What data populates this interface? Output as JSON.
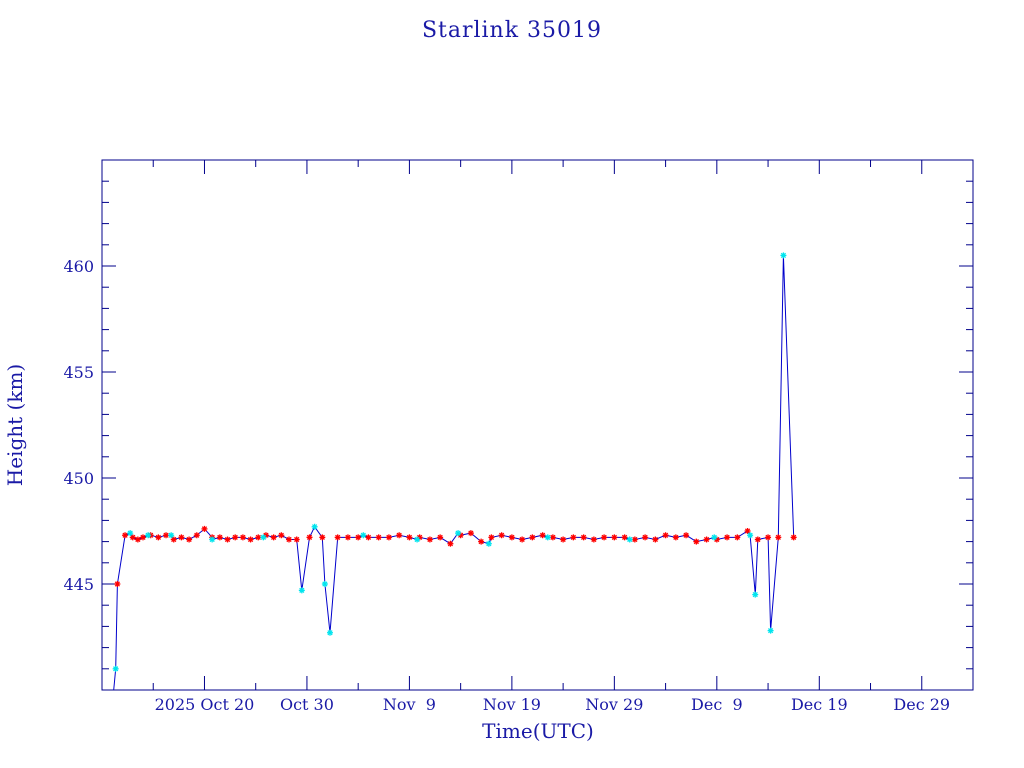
{
  "chart_data": {
    "type": "line",
    "title": "Starlink 35019",
    "xlabel": "Time(UTC)",
    "ylabel": "Height (km)",
    "x_start": "2025 Oct 10",
    "x_end": "2026 Jan 3",
    "xlim": [
      "2025-10-10",
      "2026-01-03"
    ],
    "ylim": [
      440,
      465
    ],
    "y_ticks": [
      445,
      450,
      455,
      460
    ],
    "x_ticks": [
      {
        "date": "2025-10-20",
        "label": "2025 Oct 20"
      },
      {
        "date": "2025-10-30",
        "label": "Oct 30"
      },
      {
        "date": "2025-11-09",
        "label": "Nov  9"
      },
      {
        "date": "2025-11-19",
        "label": "Nov 19"
      },
      {
        "date": "2025-11-29",
        "label": "Nov 29"
      },
      {
        "date": "2025-12-09",
        "label": "Dec  9"
      },
      {
        "date": "2025-12-19",
        "label": "Dec 19"
      },
      {
        "date": "2025-12-29",
        "label": "Dec 29"
      }
    ],
    "colors": {
      "frame": "#00008b",
      "line": "#0000cc",
      "series_primary": "#ff0000",
      "series_secondary": "#00e5ee"
    },
    "series": [
      {
        "marker": "asterisk",
        "color": "#ff0000",
        "points": [
          [
            "2025-10-11 12:00",
            445.0
          ],
          [
            "2025-10-12 06:00",
            447.3
          ],
          [
            "2025-10-13 00:00",
            447.2
          ],
          [
            "2025-10-13 12:00",
            447.1
          ],
          [
            "2025-10-14 00:00",
            447.2
          ],
          [
            "2025-10-14 18:00",
            447.3
          ],
          [
            "2025-10-15 12:00",
            447.2
          ],
          [
            "2025-10-16 06:00",
            447.3
          ],
          [
            "2025-10-17 00:00",
            447.1
          ],
          [
            "2025-10-17 18:00",
            447.2
          ],
          [
            "2025-10-18 12:00",
            447.1
          ],
          [
            "2025-10-19 06:00",
            447.3
          ],
          [
            "2025-10-20 00:00",
            447.6
          ],
          [
            "2025-10-20 18:00",
            447.2
          ],
          [
            "2025-10-21 12:00",
            447.2
          ],
          [
            "2025-10-22 06:00",
            447.1
          ],
          [
            "2025-10-23 00:00",
            447.2
          ],
          [
            "2025-10-23 18:00",
            447.2
          ],
          [
            "2025-10-24 12:00",
            447.1
          ],
          [
            "2025-10-25 06:00",
            447.2
          ],
          [
            "2025-10-26 00:00",
            447.3
          ],
          [
            "2025-10-26 18:00",
            447.2
          ],
          [
            "2025-10-27 12:00",
            447.3
          ],
          [
            "2025-10-28 06:00",
            447.1
          ],
          [
            "2025-10-29 00:00",
            447.1
          ],
          [
            "2025-10-30 06:00",
            447.2
          ],
          [
            "2025-10-31 12:00",
            447.2
          ],
          [
            "2025-11-02 00:00",
            447.2
          ],
          [
            "2025-11-03 00:00",
            447.2
          ],
          [
            "2025-11-04 00:00",
            447.2
          ],
          [
            "2025-11-05 00:00",
            447.2
          ],
          [
            "2025-11-06 00:00",
            447.2
          ],
          [
            "2025-11-07 00:00",
            447.2
          ],
          [
            "2025-11-08 00:00",
            447.3
          ],
          [
            "2025-11-09 00:00",
            447.2
          ],
          [
            "2025-11-10 00:00",
            447.2
          ],
          [
            "2025-11-11 00:00",
            447.1
          ],
          [
            "2025-11-12 00:00",
            447.2
          ],
          [
            "2025-11-13 00:00",
            446.9
          ],
          [
            "2025-11-14 00:00",
            447.3
          ],
          [
            "2025-11-15 00:00",
            447.4
          ],
          [
            "2025-11-16 00:00",
            447.0
          ],
          [
            "2025-11-17 00:00",
            447.2
          ],
          [
            "2025-11-18 00:00",
            447.3
          ],
          [
            "2025-11-19 00:00",
            447.2
          ],
          [
            "2025-11-20 00:00",
            447.1
          ],
          [
            "2025-11-21 00:00",
            447.2
          ],
          [
            "2025-11-22 00:00",
            447.3
          ],
          [
            "2025-11-23 00:00",
            447.2
          ],
          [
            "2025-11-24 00:00",
            447.1
          ],
          [
            "2025-11-25 00:00",
            447.2
          ],
          [
            "2025-11-26 00:00",
            447.2
          ],
          [
            "2025-11-27 00:00",
            447.1
          ],
          [
            "2025-11-28 00:00",
            447.2
          ],
          [
            "2025-11-29 00:00",
            447.2
          ],
          [
            "2025-11-30 00:00",
            447.2
          ],
          [
            "2025-12-01 00:00",
            447.1
          ],
          [
            "2025-12-02 00:00",
            447.2
          ],
          [
            "2025-12-03 00:00",
            447.1
          ],
          [
            "2025-12-04 00:00",
            447.3
          ],
          [
            "2025-12-05 00:00",
            447.2
          ],
          [
            "2025-12-06 00:00",
            447.3
          ],
          [
            "2025-12-07 00:00",
            447.0
          ],
          [
            "2025-12-08 00:00",
            447.1
          ],
          [
            "2025-12-09 00:00",
            447.1
          ],
          [
            "2025-12-10 00:00",
            447.2
          ],
          [
            "2025-12-11 00:00",
            447.2
          ],
          [
            "2025-12-12 00:00",
            447.5
          ],
          [
            "2025-12-13 00:00",
            447.1
          ],
          [
            "2025-12-14 00:00",
            447.2
          ],
          [
            "2025-12-15 00:00",
            447.2
          ],
          [
            "2025-12-16 12:00",
            447.2
          ]
        ]
      },
      {
        "marker": "asterisk",
        "color": "#00e5ee",
        "points": [
          [
            "2025-10-11 08:00",
            441.0
          ],
          [
            "2025-10-12 18:00",
            447.4
          ],
          [
            "2025-10-14 12:00",
            447.3
          ],
          [
            "2025-10-16 18:00",
            447.3
          ],
          [
            "2025-10-20 18:00",
            447.1
          ],
          [
            "2025-10-25 18:00",
            447.2
          ],
          [
            "2025-10-29 12:00",
            444.7
          ],
          [
            "2025-10-30 18:00",
            447.7
          ],
          [
            "2025-10-31 18:00",
            445.0
          ],
          [
            "2025-11-01 06:00",
            442.7
          ],
          [
            "2025-11-04 12:00",
            447.3
          ],
          [
            "2025-11-09 18:00",
            447.1
          ],
          [
            "2025-11-13 18:00",
            447.4
          ],
          [
            "2025-11-16 18:00",
            446.9
          ],
          [
            "2025-11-22 12:00",
            447.2
          ],
          [
            "2025-11-30 12:00",
            447.1
          ],
          [
            "2025-12-08 18:00",
            447.2
          ],
          [
            "2025-12-12 06:00",
            447.3
          ],
          [
            "2025-12-12 18:00",
            444.5
          ],
          [
            "2025-12-14 06:00",
            442.8
          ],
          [
            "2025-12-15 12:00",
            460.5
          ]
        ]
      }
    ]
  }
}
